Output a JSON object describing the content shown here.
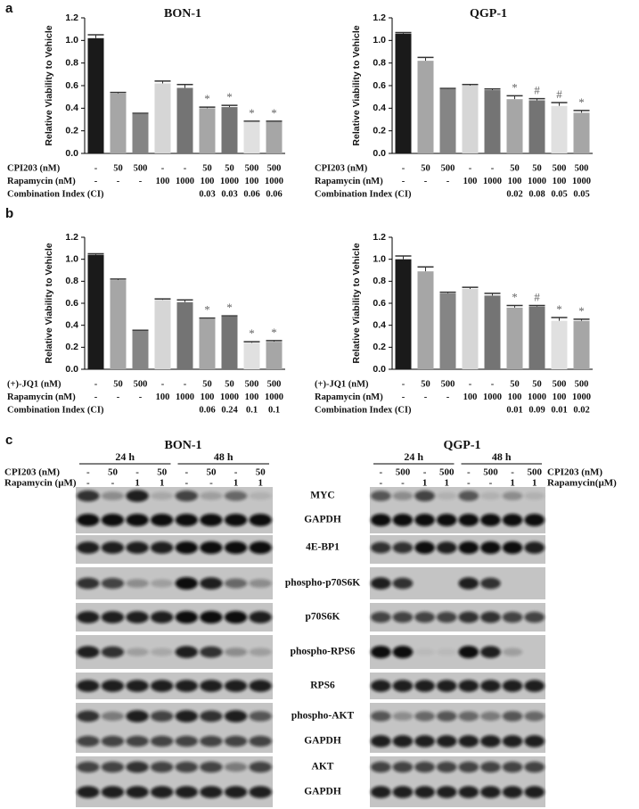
{
  "panels": [
    "a",
    "b",
    "c"
  ],
  "chart_data": [
    {
      "type": "bar",
      "title": "BON-1",
      "y_label": "Relative Viability to Vehicle",
      "categories": [
        null,
        null,
        null,
        null,
        null,
        null,
        null,
        null,
        null
      ],
      "values": [
        1.02,
        0.53,
        0.35,
        0.62,
        0.58,
        0.4,
        0.41,
        0.28,
        0.28
      ],
      "errors": [
        0.03,
        0.01,
        0.005,
        0.02,
        0.03,
        0.01,
        0.015,
        0.005,
        0.005
      ],
      "colors": [
        "#1a1a1a",
        "#a6a6a6",
        "#858585",
        "#d6d6d6",
        "#747474",
        "#a6a6a6",
        "#747474",
        "#e0e0e0",
        "#a6a6a6"
      ],
      "annotations": [
        null,
        null,
        null,
        null,
        null,
        "*",
        "*",
        "*",
        "*"
      ],
      "ylim": [
        0,
        1.2
      ],
      "yticks": [
        {
          "value": 0,
          "label": "0.0"
        },
        0.2,
        0.4,
        0.6,
        0.8,
        {
          "value": 1,
          "label": "1.0"
        },
        1.2
      ],
      "rows": [
        {
          "label": "CPI203 (nM)",
          "values": [
            "-",
            "50",
            "500",
            "-",
            "-",
            "50",
            "50",
            "500",
            "500"
          ]
        },
        {
          "label": "Rapamycin (nM)",
          "values": [
            "-",
            "-",
            "-",
            "100",
            "1000",
            "100",
            "1000",
            "100",
            "1000"
          ]
        },
        {
          "label": "Combination Index (CI)",
          "values": [
            null,
            null,
            null,
            null,
            null,
            0.03,
            0.03,
            0.06,
            0.06
          ]
        }
      ]
    },
    {
      "type": "bar",
      "title": "QGP-1",
      "y_label": "Relative Viability to Vehicle",
      "categories": [
        null,
        null,
        null,
        null,
        null,
        null,
        null,
        null,
        null
      ],
      "values": [
        1.06,
        0.82,
        0.57,
        0.6,
        0.56,
        0.48,
        0.47,
        0.42,
        0.36
      ],
      "errors": [
        0.01,
        0.03,
        0.005,
        0.01,
        0.01,
        0.03,
        0.015,
        0.03,
        0.02
      ],
      "colors": [
        "#1a1a1a",
        "#a6a6a6",
        "#858585",
        "#d6d6d6",
        "#747474",
        "#a6a6a6",
        "#747474",
        "#e0e0e0",
        "#a6a6a6"
      ],
      "annotations": [
        null,
        null,
        null,
        null,
        null,
        "*",
        "#",
        "#",
        "*"
      ],
      "ylim": [
        0,
        1.2
      ],
      "yticks": [
        {
          "value": 0,
          "label": "0.0"
        },
        0.2,
        0.4,
        0.6,
        0.8,
        {
          "value": 1,
          "label": "1.0"
        },
        1.2
      ],
      "rows": [
        {
          "label": "CPI203 (nM)",
          "values": [
            "-",
            "50",
            "500",
            "-",
            "-",
            "50",
            "50",
            "500",
            "500"
          ]
        },
        {
          "label": "Rapamycin (nM)",
          "values": [
            "-",
            "-",
            "-",
            "100",
            "1000",
            "100",
            "1000",
            "100",
            "1000"
          ]
        },
        {
          "label": "Combination Index (CI)",
          "values": [
            null,
            null,
            null,
            null,
            null,
            0.02,
            0.08,
            0.05,
            0.05
          ]
        }
      ]
    },
    {
      "type": "bar",
      "y_label": "Relative Viability to Vehicle",
      "categories": [
        null,
        null,
        null,
        null,
        null,
        null,
        null,
        null,
        null
      ],
      "values": [
        1.04,
        0.81,
        0.35,
        0.63,
        0.61,
        0.46,
        0.48,
        0.24,
        0.25
      ],
      "errors": [
        0.01,
        0.01,
        0.005,
        0.01,
        0.02,
        0.005,
        0.005,
        0.01,
        0.01
      ],
      "colors": [
        "#1a1a1a",
        "#a6a6a6",
        "#858585",
        "#d6d6d6",
        "#747474",
        "#a6a6a6",
        "#747474",
        "#e0e0e0",
        "#a6a6a6"
      ],
      "annotations": [
        null,
        null,
        null,
        null,
        null,
        "*",
        "*",
        "*",
        "*"
      ],
      "ylim": [
        0,
        1.2
      ],
      "yticks": [
        {
          "value": 0,
          "label": "0.0"
        },
        0.2,
        0.4,
        0.6,
        0.8,
        {
          "value": 1,
          "label": "1.0"
        },
        1.2
      ],
      "rows": [
        {
          "label": "(+)-JQ1 (nM)",
          "values": [
            "-",
            "50",
            "500",
            "-",
            "-",
            "50",
            "50",
            "500",
            "500"
          ]
        },
        {
          "label": "Rapamycin (nM)",
          "values": [
            "-",
            "-",
            "-",
            "100",
            "1000",
            "100",
            "1000",
            "100",
            "1000"
          ]
        },
        {
          "label": "Combination Index (CI)",
          "values": [
            null,
            null,
            null,
            null,
            null,
            0.06,
            0.24,
            0.1,
            0.1
          ]
        }
      ]
    },
    {
      "type": "bar",
      "y_label": "Relative Viability to Vehicle",
      "categories": [
        null,
        null,
        null,
        null,
        null,
        null,
        null,
        null,
        null
      ],
      "values": [
        1.0,
        0.89,
        0.69,
        0.73,
        0.67,
        0.56,
        0.57,
        0.44,
        0.44
      ],
      "errors": [
        0.03,
        0.04,
        0.01,
        0.015,
        0.02,
        0.02,
        0.01,
        0.03,
        0.015
      ],
      "colors": [
        "#1a1a1a",
        "#a6a6a6",
        "#858585",
        "#d6d6d6",
        "#747474",
        "#a6a6a6",
        "#747474",
        "#e0e0e0",
        "#a6a6a6"
      ],
      "annotations": [
        null,
        null,
        null,
        null,
        null,
        "*",
        "#",
        "*",
        "*"
      ],
      "ylim": [
        0,
        1.2
      ],
      "yticks": [
        {
          "value": 0,
          "label": "0.0"
        },
        0.2,
        0.4,
        0.6,
        0.8,
        {
          "value": 1,
          "label": "1.0"
        },
        1.2
      ],
      "rows": [
        {
          "label": "(+)-JQ1 (nM)",
          "values": [
            "-",
            "50",
            "500",
            "-",
            "-",
            "50",
            "50",
            "500",
            "500"
          ]
        },
        {
          "label": "Rapamycin (nM)",
          "values": [
            "-",
            "-",
            "-",
            "100",
            "1000",
            "100",
            "1000",
            "100",
            "1000"
          ]
        },
        {
          "label": "Combination Index (CI)",
          "values": [
            null,
            null,
            null,
            null,
            null,
            0.01,
            0.09,
            0.01,
            0.02
          ]
        }
      ]
    }
  ],
  "blots": {
    "proteins": [
      "MYC",
      "GAPDH",
      "4E-BP1",
      "phospho-p70S6K",
      "p70S6K",
      "phospho-RPS6",
      "RPS6",
      "phospho-AKT",
      "GAPDH",
      "AKT",
      "GAPDH"
    ],
    "left": {
      "title": "BON-1",
      "times": [
        "24 h",
        "48 h"
      ],
      "rows": [
        {
          "label": "CPI203 (nM)",
          "values": [
            "-",
            "50",
            "-",
            "50",
            "-",
            "50",
            "-",
            "50"
          ]
        },
        {
          "label": "Rapamycin (µM)",
          "values": [
            "-",
            "-",
            "1",
            "1",
            "-",
            "-",
            "1",
            "1"
          ]
        }
      ]
    },
    "right": {
      "title": "QGP-1",
      "times": [
        "24 h",
        "48 h"
      ],
      "rows": [
        {
          "label": "CPI203 (nM)",
          "values": [
            "-",
            "500",
            "-",
            "500",
            "-",
            "500",
            "-",
            "500"
          ]
        },
        {
          "label": "Rapamycin(µM)",
          "values": [
            "-",
            "-",
            "1",
            "1",
            "-",
            "-",
            "1",
            "1"
          ]
        }
      ]
    }
  }
}
